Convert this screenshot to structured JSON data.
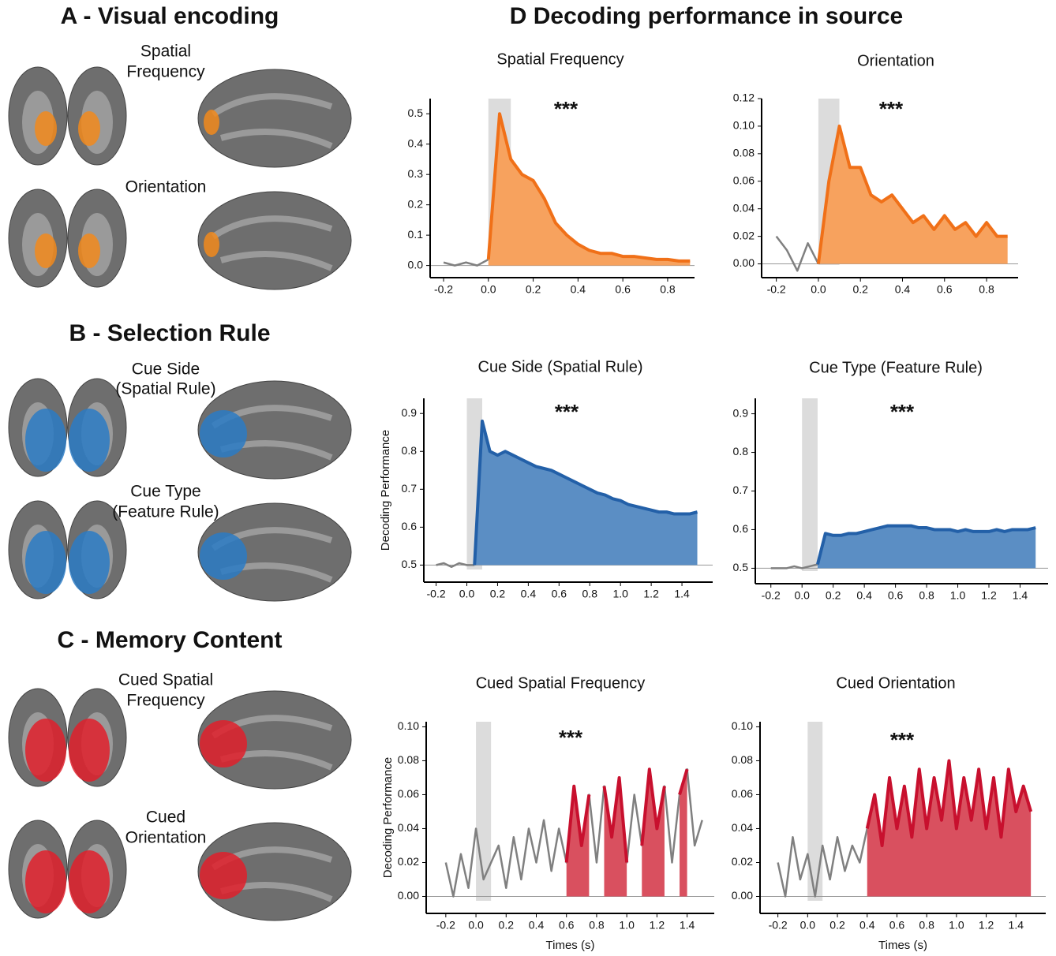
{
  "section_title": "D Decoding performance in source",
  "panels": [
    {
      "title": "A - Visual encoding",
      "labels": [
        [
          "Spatial",
          "Frequency"
        ],
        [
          "Orientation"
        ]
      ]
    },
    {
      "title": "B - Selection Rule",
      "labels": [
        [
          "Cue Side",
          "(Spatial Rule)"
        ],
        [
          "Cue Type",
          "(Feature Rule)"
        ]
      ]
    },
    {
      "title": "C - Memory Content",
      "labels": [
        [
          "Cued Spatial",
          "Frequency"
        ],
        [
          "Cued",
          "Orientation"
        ]
      ]
    }
  ],
  "chart_data": [
    {
      "type": "area",
      "title": "Spatial Frequency",
      "annotation": "***",
      "x": [
        -0.2,
        -0.15,
        -0.1,
        -0.05,
        0,
        0.05,
        0.1,
        0.15,
        0.2,
        0.25,
        0.3,
        0.35,
        0.4,
        0.45,
        0.5,
        0.55,
        0.6,
        0.65,
        0.7,
        0.75,
        0.8,
        0.85,
        0.9
      ],
      "series": [
        {
          "color": "#808080",
          "values": [
            0.01,
            0.0,
            0.01,
            0.0,
            0.02,
            null,
            null,
            null,
            null,
            null,
            null,
            null,
            null,
            null,
            null,
            null,
            null,
            null,
            null,
            null,
            null,
            null,
            null
          ]
        },
        {
          "color": "#f07018",
          "fill": "#f7a25e",
          "values": [
            null,
            null,
            null,
            null,
            0.02,
            0.5,
            0.35,
            0.3,
            0.28,
            0.22,
            0.14,
            0.1,
            0.07,
            0.05,
            0.04,
            0.04,
            0.03,
            0.03,
            0.025,
            0.02,
            0.02,
            0.015,
            0.015
          ]
        }
      ],
      "stimulus_window": [
        0,
        0.1
      ],
      "chance_level": 0,
      "xlim": [
        -0.26,
        0.92
      ],
      "ylim": [
        -0.04,
        0.55
      ],
      "xticks": [
        -0.2,
        {
          "value": 0,
          "label": "0.0"
        },
        0.2,
        0.4,
        0.6,
        0.8
      ],
      "yticks": [
        {
          "value": 0,
          "label": "0.0"
        },
        0.1,
        0.2,
        0.3,
        0.4,
        0.5
      ]
    },
    {
      "type": "area",
      "title": "Orientation",
      "annotation": "***",
      "x": [
        -0.2,
        -0.15,
        -0.1,
        -0.05,
        0,
        0.05,
        0.1,
        0.15,
        0.2,
        0.25,
        0.3,
        0.35,
        0.4,
        0.45,
        0.5,
        0.55,
        0.6,
        0.65,
        0.7,
        0.75,
        0.8,
        0.85,
        0.9
      ],
      "series": [
        {
          "color": "#808080",
          "values": [
            0.02,
            0.01,
            -0.005,
            0.015,
            0.0,
            null,
            null,
            null,
            null,
            null,
            null,
            null,
            null,
            null,
            null,
            null,
            null,
            null,
            null,
            null,
            null,
            null,
            null
          ]
        },
        {
          "color": "#f07018",
          "fill": "#f7a25e",
          "values": [
            null,
            null,
            null,
            null,
            0.0,
            0.06,
            0.1,
            0.07,
            0.07,
            0.05,
            0.045,
            0.05,
            0.04,
            0.03,
            0.035,
            0.025,
            0.035,
            0.025,
            0.03,
            0.02,
            0.03,
            0.02,
            0.02
          ]
        }
      ],
      "stimulus_window": [
        0,
        0.1
      ],
      "chance_level": 0,
      "xlim": [
        -0.27,
        0.95
      ],
      "ylim": [
        -0.01,
        0.12
      ],
      "xticks": [
        -0.2,
        {
          "value": 0,
          "label": "0.0"
        },
        0.2,
        0.4,
        0.6,
        0.8
      ],
      "yticks": [
        {
          "value": 0,
          "label": "0.00"
        },
        0.02,
        0.04,
        0.06,
        0.08,
        {
          "value": 0.1,
          "label": "0.10"
        },
        0.12
      ]
    },
    {
      "type": "area",
      "title": "Cue Side (Spatial Rule)",
      "annotation": "***",
      "ylabel": "Decoding Performance",
      "x": [
        -0.2,
        -0.15,
        -0.1,
        -0.05,
        0,
        0.05,
        0.1,
        0.15,
        0.2,
        0.25,
        0.3,
        0.35,
        0.4,
        0.45,
        0.5,
        0.55,
        0.6,
        0.65,
        0.7,
        0.75,
        0.8,
        0.85,
        0.9,
        0.95,
        1.0,
        1.05,
        1.1,
        1.15,
        1.2,
        1.25,
        1.3,
        1.35,
        1.4,
        1.45,
        1.5
      ],
      "series": [
        {
          "color": "#808080",
          "values": [
            0.5,
            0.505,
            0.495,
            0.505,
            0.5,
            0.5,
            null,
            null,
            null,
            null,
            null,
            null,
            null,
            null,
            null,
            null,
            null,
            null,
            null,
            null,
            null,
            null,
            null,
            null,
            null,
            null,
            null,
            null,
            null,
            null,
            null,
            null,
            null,
            null,
            null
          ]
        },
        {
          "color": "#2360a8",
          "fill": "#5b8ec4",
          "values": [
            null,
            null,
            null,
            null,
            null,
            0.5,
            0.88,
            0.8,
            0.79,
            0.8,
            0.79,
            0.78,
            0.77,
            0.76,
            0.755,
            0.75,
            0.74,
            0.73,
            0.72,
            0.71,
            0.7,
            0.69,
            0.685,
            0.675,
            0.67,
            0.66,
            0.655,
            0.65,
            0.645,
            0.64,
            0.64,
            0.635,
            0.635,
            0.635,
            0.64
          ]
        }
      ],
      "stimulus_window": [
        0,
        0.1
      ],
      "chance_level": 0.5,
      "xlim": [
        -0.28,
        1.6
      ],
      "ylim": [
        0.455,
        0.94
      ],
      "xticks": [
        -0.2,
        {
          "value": 0,
          "label": "0.0"
        },
        0.2,
        0.4,
        0.6,
        0.8,
        {
          "value": 1,
          "label": "1.0"
        },
        1.2,
        1.4
      ],
      "yticks": [
        0.5,
        0.6,
        0.7,
        0.8,
        0.9
      ]
    },
    {
      "type": "area",
      "title": "Cue Type (Feature Rule)",
      "annotation": "***",
      "x": [
        -0.2,
        -0.15,
        -0.1,
        -0.05,
        0,
        0.05,
        0.1,
        0.15,
        0.2,
        0.25,
        0.3,
        0.35,
        0.4,
        0.45,
        0.5,
        0.55,
        0.6,
        0.65,
        0.7,
        0.75,
        0.8,
        0.85,
        0.9,
        0.95,
        1.0,
        1.05,
        1.1,
        1.15,
        1.2,
        1.25,
        1.3,
        1.35,
        1.4,
        1.45,
        1.5
      ],
      "series": [
        {
          "color": "#808080",
          "values": [
            0.5,
            0.5,
            0.5,
            0.505,
            0.5,
            0.505,
            0.51,
            null,
            null,
            null,
            null,
            null,
            null,
            null,
            null,
            null,
            null,
            null,
            null,
            null,
            null,
            null,
            null,
            null,
            null,
            null,
            null,
            null,
            null,
            null,
            null,
            null,
            null,
            null,
            null
          ]
        },
        {
          "color": "#2360a8",
          "fill": "#5b8ec4",
          "values": [
            null,
            null,
            null,
            null,
            null,
            null,
            0.51,
            0.59,
            0.585,
            0.585,
            0.59,
            0.59,
            0.595,
            0.6,
            0.605,
            0.61,
            0.61,
            0.61,
            0.61,
            0.605,
            0.605,
            0.6,
            0.6,
            0.6,
            0.595,
            0.6,
            0.595,
            0.595,
            0.595,
            0.6,
            0.595,
            0.6,
            0.6,
            0.6,
            0.605
          ]
        }
      ],
      "stimulus_window": [
        0,
        0.1
      ],
      "chance_level": 0.5,
      "xlim": [
        -0.3,
        1.58
      ],
      "ylim": [
        0.46,
        0.94
      ],
      "xticks": [
        -0.2,
        {
          "value": 0,
          "label": "0.0"
        },
        0.2,
        0.4,
        0.6,
        0.8,
        {
          "value": 1,
          "label": "1.0"
        },
        1.2,
        1.4
      ],
      "yticks": [
        0.5,
        0.6,
        0.7,
        0.8,
        0.9
      ]
    },
    {
      "type": "area",
      "title": "Cued Spatial Frequency",
      "annotation": "***",
      "ylabel": "Decoding Performance",
      "xlabel": "Times (s)",
      "x": [
        -0.2,
        -0.15,
        -0.1,
        -0.05,
        0,
        0.05,
        0.1,
        0.15,
        0.2,
        0.25,
        0.3,
        0.35,
        0.4,
        0.45,
        0.5,
        0.55,
        0.6,
        0.65,
        0.7,
        0.75,
        0.8,
        0.85,
        0.9,
        0.95,
        1.0,
        1.05,
        1.1,
        1.15,
        1.2,
        1.25,
        1.3,
        1.35,
        1.4,
        1.45,
        1.5
      ],
      "series": [
        {
          "color": "#808080",
          "values": [
            0.02,
            0.0,
            0.025,
            0.005,
            0.04,
            0.01,
            0.02,
            0.03,
            0.005,
            0.035,
            0.01,
            0.04,
            0.02,
            0.045,
            0.015,
            0.04,
            0.02,
            0.065,
            0.03,
            0.06,
            0.02,
            0.065,
            0.035,
            0.07,
            0.02,
            0.06,
            0.03,
            0.075,
            0.04,
            0.065,
            0.02,
            0.06,
            0.075,
            0.03,
            0.045
          ]
        },
        {
          "color": "#c8102e",
          "fill": "#d9505f",
          "values": [
            null,
            null,
            null,
            null,
            null,
            null,
            null,
            null,
            null,
            null,
            null,
            null,
            null,
            null,
            null,
            null,
            0.02,
            0.065,
            0.03,
            0.06,
            null,
            0.065,
            0.035,
            0.07,
            0.02,
            null,
            0.03,
            0.075,
            0.04,
            0.065,
            null,
            0.06,
            0.075,
            null,
            null
          ]
        }
      ],
      "stimulus_window": [
        0,
        0.1
      ],
      "chance_level": 0,
      "xlim": [
        -0.33,
        1.58
      ],
      "ylim": [
        -0.01,
        0.103
      ],
      "xticks": [
        -0.2,
        {
          "value": 0,
          "label": "0.0"
        },
        0.2,
        0.4,
        0.6,
        0.8,
        {
          "value": 1,
          "label": "1.0"
        },
        1.2,
        1.4
      ],
      "yticks": [
        {
          "value": 0,
          "label": "0.00"
        },
        0.02,
        0.04,
        0.06,
        0.08,
        {
          "value": 0.1,
          "label": "0.10"
        }
      ]
    },
    {
      "type": "area",
      "title": "Cued Orientation",
      "annotation": "***",
      "xlabel": "Times (s)",
      "x": [
        -0.2,
        -0.15,
        -0.1,
        -0.05,
        0,
        0.05,
        0.1,
        0.15,
        0.2,
        0.25,
        0.3,
        0.35,
        0.4,
        0.45,
        0.5,
        0.55,
        0.6,
        0.65,
        0.7,
        0.75,
        0.8,
        0.85,
        0.9,
        0.95,
        1.0,
        1.05,
        1.1,
        1.15,
        1.2,
        1.25,
        1.3,
        1.35,
        1.4,
        1.45,
        1.5
      ],
      "series": [
        {
          "color": "#808080",
          "values": [
            0.02,
            0.0,
            0.035,
            0.01,
            0.025,
            0.0,
            0.03,
            0.01,
            0.035,
            0.015,
            0.03,
            0.02,
            0.04,
            null,
            null,
            null,
            null,
            null,
            null,
            null,
            null,
            null,
            null,
            null,
            null,
            null,
            null,
            null,
            null,
            null,
            null,
            null,
            null,
            null,
            null
          ]
        },
        {
          "color": "#c8102e",
          "fill": "#d9505f",
          "values": [
            null,
            null,
            null,
            null,
            null,
            null,
            null,
            null,
            null,
            null,
            null,
            null,
            0.04,
            0.06,
            0.03,
            0.07,
            0.04,
            0.065,
            0.035,
            0.075,
            0.04,
            0.07,
            0.045,
            0.08,
            0.04,
            0.07,
            0.045,
            0.075,
            0.04,
            0.07,
            0.035,
            0.075,
            0.05,
            0.065,
            0.05
          ]
        }
      ],
      "stimulus_window": [
        0,
        0.1
      ],
      "chance_level": 0,
      "xlim": [
        -0.32,
        1.6
      ],
      "ylim": [
        -0.01,
        0.103
      ],
      "xticks": [
        -0.2,
        {
          "value": 0,
          "label": "0.0"
        },
        0.2,
        0.4,
        0.6,
        0.8,
        {
          "value": 1,
          "label": "1.0"
        },
        1.2,
        1.4
      ],
      "yticks": [
        {
          "value": 0,
          "label": "0.00"
        },
        0.02,
        0.04,
        0.06,
        0.08,
        {
          "value": 0.1,
          "label": "0.10"
        }
      ]
    }
  ]
}
